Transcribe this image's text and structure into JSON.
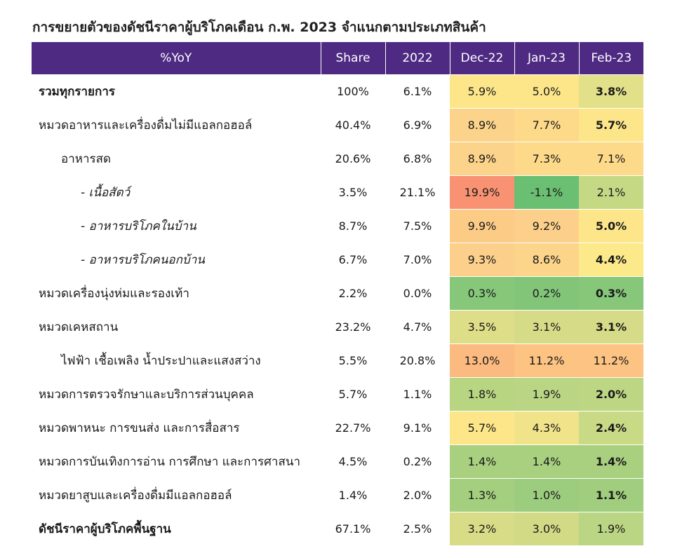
{
  "title": "การขยายตัวของดัชนีราคาผู้บริโภคเดือน ก.พ. 2023 จำแนกตามประเภทสินค้า",
  "headers": [
    "%YoY",
    "Share",
    "2022",
    "Dec-22",
    "Jan-23",
    "Feb-23"
  ],
  "rows": [
    {
      "label": "รวมทุกรายการ",
      "level": 0,
      "label_bold": true,
      "share": "100%",
      "y2022": "6.1%",
      "dec22": "5.9%",
      "jan23": "5.0%",
      "feb23": "3.8%",
      "feb_bold": true,
      "colors": [
        "#fde68a",
        "#fde68a",
        "#e3e08a"
      ]
    },
    {
      "label": "หมวดอาหารและเครื่องดื่มไม่มีแอลกอฮอล์",
      "level": 0,
      "label_bold": false,
      "share": "40.4%",
      "y2022": "6.9%",
      "dec22": "8.9%",
      "jan23": "7.7%",
      "feb23": "5.7%",
      "feb_bold": true,
      "colors": [
        "#fcd38a",
        "#fdd98a",
        "#fde68a"
      ]
    },
    {
      "label": "อาหารสด",
      "level": 1,
      "label_bold": false,
      "share": "20.6%",
      "y2022": "6.8%",
      "dec22": "8.9%",
      "jan23": "7.3%",
      "feb23": "7.1%",
      "feb_bold": false,
      "colors": [
        "#fcd38a",
        "#fdd98a",
        "#fdda8a"
      ]
    },
    {
      "label": "- เนื้อสัตว์",
      "level": 2,
      "label_bold": false,
      "share": "3.5%",
      "y2022": "21.1%",
      "dec22": "19.9%",
      "jan23": "-1.1%",
      "feb23": "2.1%",
      "feb_bold": false,
      "colors": [
        "#f99273",
        "#6bbf72",
        "#c5d985"
      ]
    },
    {
      "label": "- อาหารบริโภคในบ้าน",
      "level": 2,
      "label_bold": false,
      "share": "8.7%",
      "y2022": "7.5%",
      "dec22": "9.9%",
      "jan23": "9.2%",
      "feb23": "5.0%",
      "feb_bold": true,
      "colors": [
        "#fccc87",
        "#fcd08a",
        "#fde68a"
      ]
    },
    {
      "label": "- อาหารบริโภคนอกบ้าน",
      "level": 2,
      "label_bold": false,
      "share": "6.7%",
      "y2022": "7.0%",
      "dec22": "9.3%",
      "jan23": "8.6%",
      "feb23": "4.4%",
      "feb_bold": true,
      "colors": [
        "#fcd08a",
        "#fcd48a",
        "#fce98a"
      ]
    },
    {
      "label": "หมวดเครื่องนุ่งห่มและรองเท้า",
      "level": 0,
      "label_bold": false,
      "share": "2.2%",
      "y2022": "0.0%",
      "dec22": "0.3%",
      "jan23": "0.2%",
      "feb23": "0.3%",
      "feb_bold": true,
      "colors": [
        "#86c77a",
        "#82c579",
        "#86c77a"
      ]
    },
    {
      "label": "หมวดเคหสถาน",
      "level": 0,
      "label_bold": false,
      "share": "23.2%",
      "y2022": "4.7%",
      "dec22": "3.5%",
      "jan23": "3.1%",
      "feb23": "3.1%",
      "feb_bold": true,
      "colors": [
        "#dedd88",
        "#d6db87",
        "#d6db87"
      ]
    },
    {
      "label": "ไฟฟ้า เชื้อเพลิง น้ำประปาและแสงสว่าง",
      "level": 1,
      "label_bold": false,
      "share": "5.5%",
      "y2022": "20.8%",
      "dec22": "13.0%",
      "jan23": "11.2%",
      "feb23": "11.2%",
      "feb_bold": false,
      "colors": [
        "#fbba7f",
        "#fcc383",
        "#fcc383"
      ]
    },
    {
      "label": "หมวดการตรวจรักษาและบริการส่วนบุคคล",
      "level": 0,
      "label_bold": false,
      "share": "5.7%",
      "y2022": "1.1%",
      "dec22": "1.8%",
      "jan23": "1.9%",
      "feb23": "2.0%",
      "feb_bold": true,
      "colors": [
        "#b8d582",
        "#bad583",
        "#bcd683"
      ]
    },
    {
      "label": "หมวดพาหนะ การขนส่ง และการสื่อสาร",
      "level": 0,
      "label_bold": false,
      "share": "22.7%",
      "y2022": "9.1%",
      "dec22": "5.7%",
      "jan23": "4.3%",
      "feb23": "2.4%",
      "feb_bold": true,
      "colors": [
        "#fde68a",
        "#f0e38a",
        "#c9da86"
      ]
    },
    {
      "label": "หมวดการบันเทิงการอ่าน การศึกษา และการศาสนา",
      "level": 0,
      "label_bold": false,
      "share": "4.5%",
      "y2022": "0.2%",
      "dec22": "1.4%",
      "jan23": "1.4%",
      "feb23": "1.4%",
      "feb_bold": true,
      "colors": [
        "#a8d07f",
        "#a8d07f",
        "#a8d07f"
      ]
    },
    {
      "label": "หมวดยาสูบและเครื่องดื่มมีแอลกอฮอล์",
      "level": 0,
      "label_bold": false,
      "share": "1.4%",
      "y2022": "2.0%",
      "dec22": "1.3%",
      "jan23": "1.0%",
      "feb23": "1.1%",
      "feb_bold": true,
      "colors": [
        "#a4cf7e",
        "#9ccc7d",
        "#a0cd7e"
      ]
    },
    {
      "label": "ดัชนีราคาผู้บริโภคพื้นฐาน",
      "level": 0,
      "label_bold": true,
      "share": "67.1%",
      "y2022": "2.5%",
      "dec22": "3.2%",
      "jan23": "3.0%",
      "feb23": "1.9%",
      "feb_bold": false,
      "colors": [
        "#d8dc87",
        "#d2da86",
        "#bad583"
      ]
    }
  ]
}
